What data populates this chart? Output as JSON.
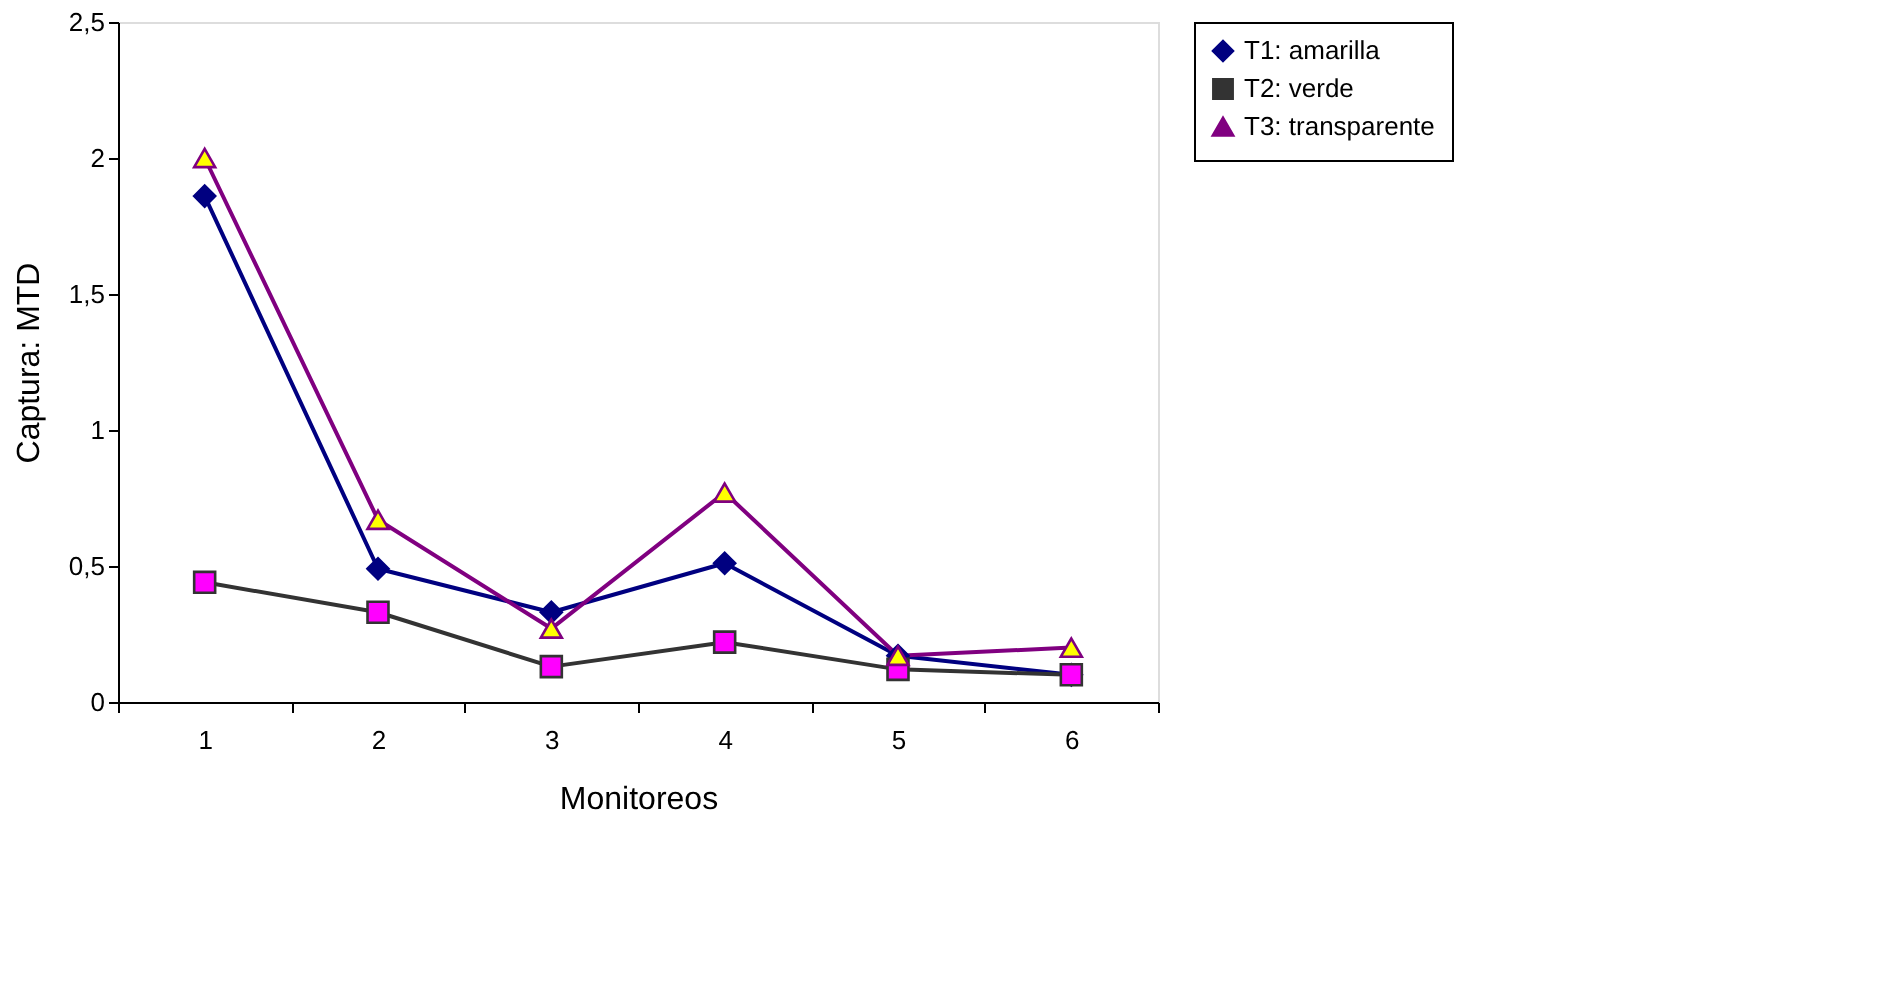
{
  "chart_data": {
    "type": "line",
    "xlabel": "Monitoreos",
    "ylabel": "Captura: MTD",
    "categories": [
      "1",
      "2",
      "3",
      "4",
      "5",
      "6"
    ],
    "series": [
      {
        "name": "T1: amarilla",
        "color": "#000080",
        "marker": "diamond",
        "colors": [
          "#000080",
          "#000080",
          "#000080",
          "#000080",
          "#000080",
          "#000080"
        ],
        "values": [
          1.86,
          0.49,
          0.33,
          0.51,
          0.17,
          0.1
        ]
      },
      {
        "name": "T2: verde",
        "color": "#333333",
        "marker": "square",
        "colors": [
          "#ff00ff",
          "#ff00ff",
          "#ff00ff",
          "#ff00ff",
          "#ff00ff",
          "#ff00ff"
        ],
        "values": [
          0.44,
          0.33,
          0.13,
          0.22,
          0.12,
          0.1
        ]
      },
      {
        "name": "T3: transparente",
        "color": "#800080",
        "marker": "triangle",
        "colors": [
          "#ffff00",
          "#ffff00",
          "#ffff00",
          "#ffff00",
          "#ffff00",
          "#ffff00"
        ],
        "values": [
          2.0,
          0.67,
          0.27,
          0.77,
          0.17,
          0.2
        ]
      }
    ],
    "ylim": [
      0,
      2.5
    ],
    "yticks": [
      0,
      {
        "value": 0.5,
        "label": "0,5"
      },
      1,
      {
        "value": 1.5,
        "label": "1,5"
      },
      2,
      {
        "value": 2.5,
        "label": "2,5"
      }
    ],
    "grid": false,
    "legend": "right",
    "line_style": "solid"
  }
}
